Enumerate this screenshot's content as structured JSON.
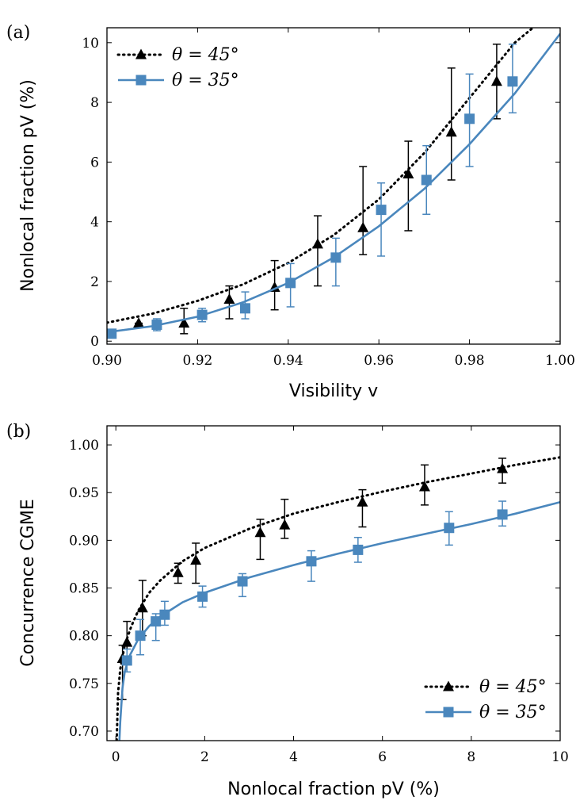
{
  "colors": {
    "black": "#000000",
    "blue": "#4a87bd"
  },
  "chart_data": [
    {
      "id": "a",
      "type": "scatter",
      "panel_label": "(a)",
      "xlabel": "Visibility v",
      "ylabel": "Nonlocal fraction pV (%)",
      "xlim": [
        0.9,
        1.0
      ],
      "ylim": [
        -0.1,
        10.5
      ],
      "xticks": [
        0.9,
        0.92,
        0.94,
        0.96,
        0.98,
        1.0
      ],
      "xtick_labels": [
        "0.90",
        "0.92",
        "0.94",
        "0.96",
        "0.98",
        "1.00"
      ],
      "yticks": [
        0,
        2,
        4,
        6,
        8,
        10
      ],
      "ytick_labels": [
        "0",
        "2",
        "4",
        "6",
        "8",
        "10"
      ],
      "legend_position": "top-left",
      "series": [
        {
          "name": "θ = 45°",
          "color": "#000000",
          "marker": "triangle",
          "fit": "dotted",
          "fit_curve": {
            "x": [
              0.9,
              0.91,
              0.92,
              0.93,
              0.94,
              0.95,
              0.96,
              0.97,
              0.98,
              0.99,
              0.994
            ],
            "y": [
              0.62,
              0.92,
              1.35,
              1.9,
              2.62,
              3.55,
              4.75,
              6.3,
              8.15,
              10.0,
              10.5
            ]
          },
          "points": [
            {
              "x": 0.907,
              "y": 0.6,
              "lo": 0.6,
              "hi": 0.6
            },
            {
              "x": 0.917,
              "y": 0.6,
              "lo": 0.25,
              "hi": 1.1
            },
            {
              "x": 0.927,
              "y": 1.4,
              "lo": 0.75,
              "hi": 1.85
            },
            {
              "x": 0.937,
              "y": 1.8,
              "lo": 1.05,
              "hi": 2.7
            },
            {
              "x": 0.9465,
              "y": 3.25,
              "lo": 1.85,
              "hi": 4.2
            },
            {
              "x": 0.9565,
              "y": 3.8,
              "lo": 2.9,
              "hi": 5.85
            },
            {
              "x": 0.9665,
              "y": 5.6,
              "lo": 3.7,
              "hi": 6.7
            },
            {
              "x": 0.976,
              "y": 7.0,
              "lo": 5.4,
              "hi": 9.15
            },
            {
              "x": 0.986,
              "y": 8.7,
              "lo": 7.45,
              "hi": 9.95
            }
          ]
        },
        {
          "name": "θ = 35°",
          "color": "#4a87bd",
          "marker": "square",
          "fit": "solid",
          "fit_curve": {
            "x": [
              0.9,
              0.91,
              0.92,
              0.93,
              0.94,
              0.95,
              0.96,
              0.97,
              0.98,
              0.99,
              1.0
            ],
            "y": [
              0.3,
              0.5,
              0.82,
              1.3,
              1.95,
              2.8,
              3.85,
              5.1,
              6.6,
              8.3,
              10.3
            ]
          },
          "points": [
            {
              "x": 0.901,
              "y": 0.25,
              "lo": 0.2,
              "hi": 0.3
            },
            {
              "x": 0.911,
              "y": 0.55,
              "lo": 0.35,
              "hi": 0.75
            },
            {
              "x": 0.921,
              "y": 0.88,
              "lo": 0.65,
              "hi": 1.1
            },
            {
              "x": 0.9305,
              "y": 1.1,
              "lo": 0.75,
              "hi": 1.65
            },
            {
              "x": 0.9405,
              "y": 1.95,
              "lo": 1.15,
              "hi": 2.6
            },
            {
              "x": 0.9505,
              "y": 2.8,
              "lo": 1.85,
              "hi": 3.45
            },
            {
              "x": 0.9605,
              "y": 4.4,
              "lo": 2.85,
              "hi": 5.3
            },
            {
              "x": 0.9705,
              "y": 5.4,
              "lo": 4.25,
              "hi": 6.55
            },
            {
              "x": 0.98,
              "y": 7.45,
              "lo": 5.85,
              "hi": 8.95
            },
            {
              "x": 0.9895,
              "y": 8.7,
              "lo": 7.65,
              "hi": 9.95
            }
          ]
        }
      ]
    },
    {
      "id": "b",
      "type": "scatter",
      "panel_label": "(b)",
      "xlabel": "Nonlocal fraction pV (%)",
      "ylabel": "Concurrence CGME",
      "xlim": [
        -0.2,
        10.0
      ],
      "ylim": [
        0.69,
        1.02
      ],
      "xticks": [
        0,
        2,
        4,
        6,
        8,
        10
      ],
      "xtick_labels": [
        "0",
        "2",
        "4",
        "6",
        "8",
        "10"
      ],
      "yticks": [
        0.7,
        0.75,
        0.8,
        0.85,
        0.9,
        0.95,
        1.0
      ],
      "ytick_labels": [
        "0.70",
        "0.75",
        "0.80",
        "0.85",
        "0.90",
        "0.95",
        "1.00"
      ],
      "legend_position": "bottom-right",
      "series": [
        {
          "name": "θ = 45°",
          "color": "#000000",
          "marker": "triangle",
          "fit": "dotted",
          "fit_curve": {
            "x": [
              0.02,
              0.05,
              0.1,
              0.2,
              0.35,
              0.5,
              0.75,
              1,
              1.5,
              2,
              3,
              4,
              5,
              6,
              7,
              8,
              9,
              10
            ],
            "y": [
              0.69,
              0.74,
              0.765,
              0.79,
              0.81,
              0.826,
              0.845,
              0.858,
              0.878,
              0.892,
              0.912,
              0.928,
              0.94,
              0.951,
              0.961,
              0.97,
              0.979,
              0.987
            ]
          },
          "points": [
            {
              "x": 0.15,
              "y": 0.776,
              "lo": 0.733,
              "hi": 0.79
            },
            {
              "x": 0.25,
              "y": 0.793,
              "lo": 0.778,
              "hi": 0.815
            },
            {
              "x": 0.6,
              "y": 0.829,
              "lo": 0.8,
              "hi": 0.858
            },
            {
              "x": 1.4,
              "y": 0.866,
              "lo": 0.855,
              "hi": 0.876
            },
            {
              "x": 1.8,
              "y": 0.879,
              "lo": 0.855,
              "hi": 0.897
            },
            {
              "x": 3.25,
              "y": 0.908,
              "lo": 0.88,
              "hi": 0.922
            },
            {
              "x": 3.8,
              "y": 0.916,
              "lo": 0.902,
              "hi": 0.943
            },
            {
              "x": 5.55,
              "y": 0.94,
              "lo": 0.914,
              "hi": 0.953
            },
            {
              "x": 6.95,
              "y": 0.956,
              "lo": 0.937,
              "hi": 0.979
            },
            {
              "x": 8.7,
              "y": 0.975,
              "lo": 0.96,
              "hi": 0.986
            }
          ]
        },
        {
          "name": "θ = 35°",
          "color": "#4a87bd",
          "marker": "square",
          "fit": "solid",
          "fit_curve": {
            "x": [
              0.08,
              0.1,
              0.15,
              0.2,
              0.3,
              0.5,
              0.75,
              1,
              1.5,
              2,
              3,
              4,
              5,
              6,
              7,
              8,
              9,
              10
            ],
            "y": [
              0.69,
              0.71,
              0.745,
              0.762,
              0.778,
              0.796,
              0.81,
              0.82,
              0.835,
              0.845,
              0.861,
              0.874,
              0.886,
              0.897,
              0.907,
              0.917,
              0.928,
              0.94
            ]
          },
          "points": [
            {
              "x": 0.25,
              "y": 0.774,
              "lo": 0.762,
              "hi": 0.786
            },
            {
              "x": 0.55,
              "y": 0.8,
              "lo": 0.78,
              "hi": 0.817
            },
            {
              "x": 0.9,
              "y": 0.815,
              "lo": 0.795,
              "hi": 0.823
            },
            {
              "x": 1.1,
              "y": 0.822,
              "lo": 0.811,
              "hi": 0.836
            },
            {
              "x": 1.95,
              "y": 0.841,
              "lo": 0.83,
              "hi": 0.852
            },
            {
              "x": 2.85,
              "y": 0.857,
              "lo": 0.841,
              "hi": 0.865
            },
            {
              "x": 4.4,
              "y": 0.878,
              "lo": 0.857,
              "hi": 0.889
            },
            {
              "x": 5.45,
              "y": 0.89,
              "lo": 0.877,
              "hi": 0.903
            },
            {
              "x": 7.5,
              "y": 0.913,
              "lo": 0.895,
              "hi": 0.93
            },
            {
              "x": 8.7,
              "y": 0.927,
              "lo": 0.915,
              "hi": 0.941
            }
          ]
        }
      ]
    }
  ]
}
